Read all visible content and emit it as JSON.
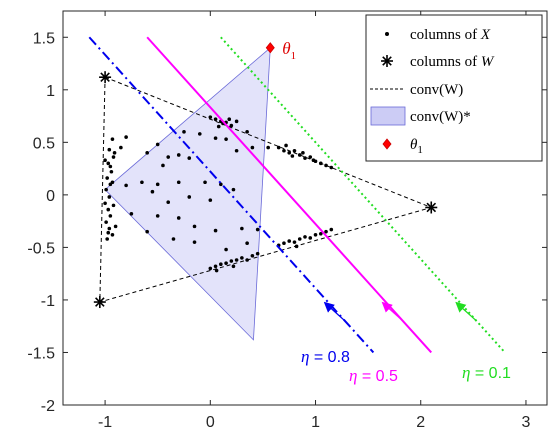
{
  "chart_data": {
    "type": "scatter",
    "xlim": [
      -1.4,
      3.2
    ],
    "ylim": [
      -2,
      1.75
    ],
    "xticks": [
      -1,
      0,
      1,
      2,
      3
    ],
    "yticks": [
      -2,
      -1.5,
      -1,
      -0.5,
      0,
      0.5,
      1,
      1.5
    ],
    "xtick_labels": [
      "-1",
      "0",
      "1",
      "2",
      "3"
    ],
    "ytick_labels": [
      "-2",
      "-1.5",
      "-1",
      "-0.5",
      "0",
      "0.5",
      "1",
      "1.5"
    ],
    "grid": false,
    "legend_position": "top-right",
    "legend": [
      {
        "symbol": "dot",
        "label": "columns of ",
        "var": "X"
      },
      {
        "symbol": "asterisk",
        "label": "columns of ",
        "var": "W"
      },
      {
        "symbol": "dashed-line",
        "label": "conv(W)"
      },
      {
        "symbol": "patch",
        "label": "conv(W)*"
      },
      {
        "symbol": "red-diamond",
        "label": "θ",
        "sub": "1"
      }
    ],
    "W": [
      [
        -1.0,
        1.12
      ],
      [
        2.1,
        -0.12
      ],
      [
        -1.05,
        -1.02
      ]
    ],
    "theta1": {
      "x": 0.57,
      "y": 1.4,
      "label": "θ",
      "sub": "1"
    },
    "dual_polygon": [
      [
        0.57,
        1.4
      ],
      [
        0.41,
        -1.38
      ],
      [
        -1.0,
        0.05
      ]
    ],
    "lines": [
      {
        "eta": "0.8",
        "color": "#0000ee",
        "style": "dashdot",
        "x": [
          -1.15,
          1.55
        ],
        "y": [
          1.5,
          -1.5
        ],
        "label": "η = 0.8"
      },
      {
        "eta": "0.5",
        "color": "#ff00ff",
        "style": "solid",
        "x": [
          -0.6,
          2.1
        ],
        "y": [
          1.5,
          -1.5
        ],
        "label": "η = 0.5"
      },
      {
        "eta": "0.1",
        "color": "#22dd22",
        "style": "dotted",
        "x": [
          0.1,
          2.8
        ],
        "y": [
          1.5,
          -1.5
        ],
        "label": "η = 0.1"
      }
    ],
    "X": [
      [
        -0.93,
        0.53
      ],
      [
        -0.96,
        0.43
      ],
      [
        -0.92,
        0.36
      ],
      [
        -0.97,
        0.3
      ],
      [
        -0.94,
        0.22
      ],
      [
        -0.98,
        0.16
      ],
      [
        -0.95,
        0.1
      ],
      [
        -0.99,
        0.05
      ],
      [
        -0.96,
        -0.02
      ],
      [
        -1.0,
        -0.08
      ],
      [
        -0.97,
        -0.14
      ],
      [
        -0.95,
        -0.2
      ],
      [
        -0.99,
        -0.26
      ],
      [
        -0.96,
        -0.32
      ],
      [
        -0.93,
        -0.38
      ],
      [
        -0.98,
        -0.42
      ],
      [
        -0.91,
        0.4
      ],
      [
        -0.93,
        0.12
      ],
      [
        -0.92,
        -0.1
      ],
      [
        -0.9,
        -0.3
      ],
      [
        -1.0,
        0.33
      ],
      [
        -0.97,
        -0.36
      ],
      [
        -0.95,
        0.27
      ],
      [
        0.0,
        0.74
      ],
      [
        0.05,
        0.72
      ],
      [
        0.1,
        0.7
      ],
      [
        0.15,
        0.69
      ],
      [
        0.2,
        0.66
      ],
      [
        0.25,
        0.7
      ],
      [
        0.08,
        0.65
      ],
      [
        0.18,
        0.72
      ],
      [
        0.12,
        0.68
      ],
      [
        0.65,
        0.45
      ],
      [
        0.7,
        0.42
      ],
      [
        0.75,
        0.4
      ],
      [
        0.8,
        0.42
      ],
      [
        0.85,
        0.38
      ],
      [
        0.9,
        0.35
      ],
      [
        0.95,
        0.36
      ],
      [
        1.0,
        0.32
      ],
      [
        1.05,
        0.3
      ],
      [
        1.1,
        0.28
      ],
      [
        0.72,
        0.47
      ],
      [
        0.88,
        0.4
      ],
      [
        0.98,
        0.33
      ],
      [
        0.78,
        0.37
      ],
      [
        1.15,
        0.26
      ],
      [
        0.0,
        -0.7
      ],
      [
        0.05,
        -0.68
      ],
      [
        0.1,
        -0.66
      ],
      [
        0.15,
        -0.65
      ],
      [
        0.2,
        -0.63
      ],
      [
        0.25,
        -0.62
      ],
      [
        0.3,
        -0.6
      ],
      [
        0.35,
        -0.62
      ],
      [
        0.4,
        -0.58
      ],
      [
        0.45,
        -0.56
      ],
      [
        0.06,
        -0.72
      ],
      [
        0.22,
        -0.68
      ],
      [
        0.65,
        -0.48
      ],
      [
        0.7,
        -0.46
      ],
      [
        0.75,
        -0.44
      ],
      [
        0.8,
        -0.45
      ],
      [
        0.85,
        -0.42
      ],
      [
        0.9,
        -0.4
      ],
      [
        0.95,
        -0.41
      ],
      [
        1.0,
        -0.38
      ],
      [
        1.05,
        -0.37
      ],
      [
        1.1,
        -0.35
      ],
      [
        1.15,
        -0.33
      ],
      [
        0.82,
        -0.49
      ],
      [
        -0.85,
        0.45
      ],
      [
        -0.8,
        0.55
      ],
      [
        -0.6,
        0.4
      ],
      [
        -0.5,
        0.48
      ],
      [
        -0.4,
        0.36
      ],
      [
        -0.3,
        0.38
      ],
      [
        -0.2,
        0.35
      ],
      [
        -0.45,
        0.28
      ],
      [
        -0.25,
        0.6
      ],
      [
        -0.1,
        0.58
      ],
      [
        0.05,
        0.54
      ],
      [
        0.15,
        0.53
      ],
      [
        0.35,
        0.6
      ],
      [
        0.25,
        0.42
      ],
      [
        0.55,
        0.45
      ],
      [
        0.4,
        0.45
      ],
      [
        -0.8,
        0.09
      ],
      [
        -0.65,
        0.12
      ],
      [
        -0.5,
        0.1
      ],
      [
        -0.3,
        0.12
      ],
      [
        -0.05,
        0.12
      ],
      [
        0.1,
        0.1
      ],
      [
        0.22,
        0.05
      ],
      [
        -0.55,
        0.03
      ],
      [
        -0.4,
        -0.07
      ],
      [
        -0.2,
        -0.02
      ],
      [
        0.0,
        -0.05
      ],
      [
        -0.75,
        -0.18
      ],
      [
        -0.5,
        -0.2
      ],
      [
        -0.3,
        -0.22
      ],
      [
        -0.15,
        -0.3
      ],
      [
        0.05,
        -0.34
      ],
      [
        0.3,
        -0.32
      ],
      [
        0.45,
        -0.33
      ],
      [
        -0.6,
        -0.35
      ],
      [
        -0.35,
        -0.42
      ],
      [
        -0.15,
        -0.45
      ],
      [
        0.15,
        -0.52
      ],
      [
        0.35,
        -0.46
      ]
    ]
  }
}
